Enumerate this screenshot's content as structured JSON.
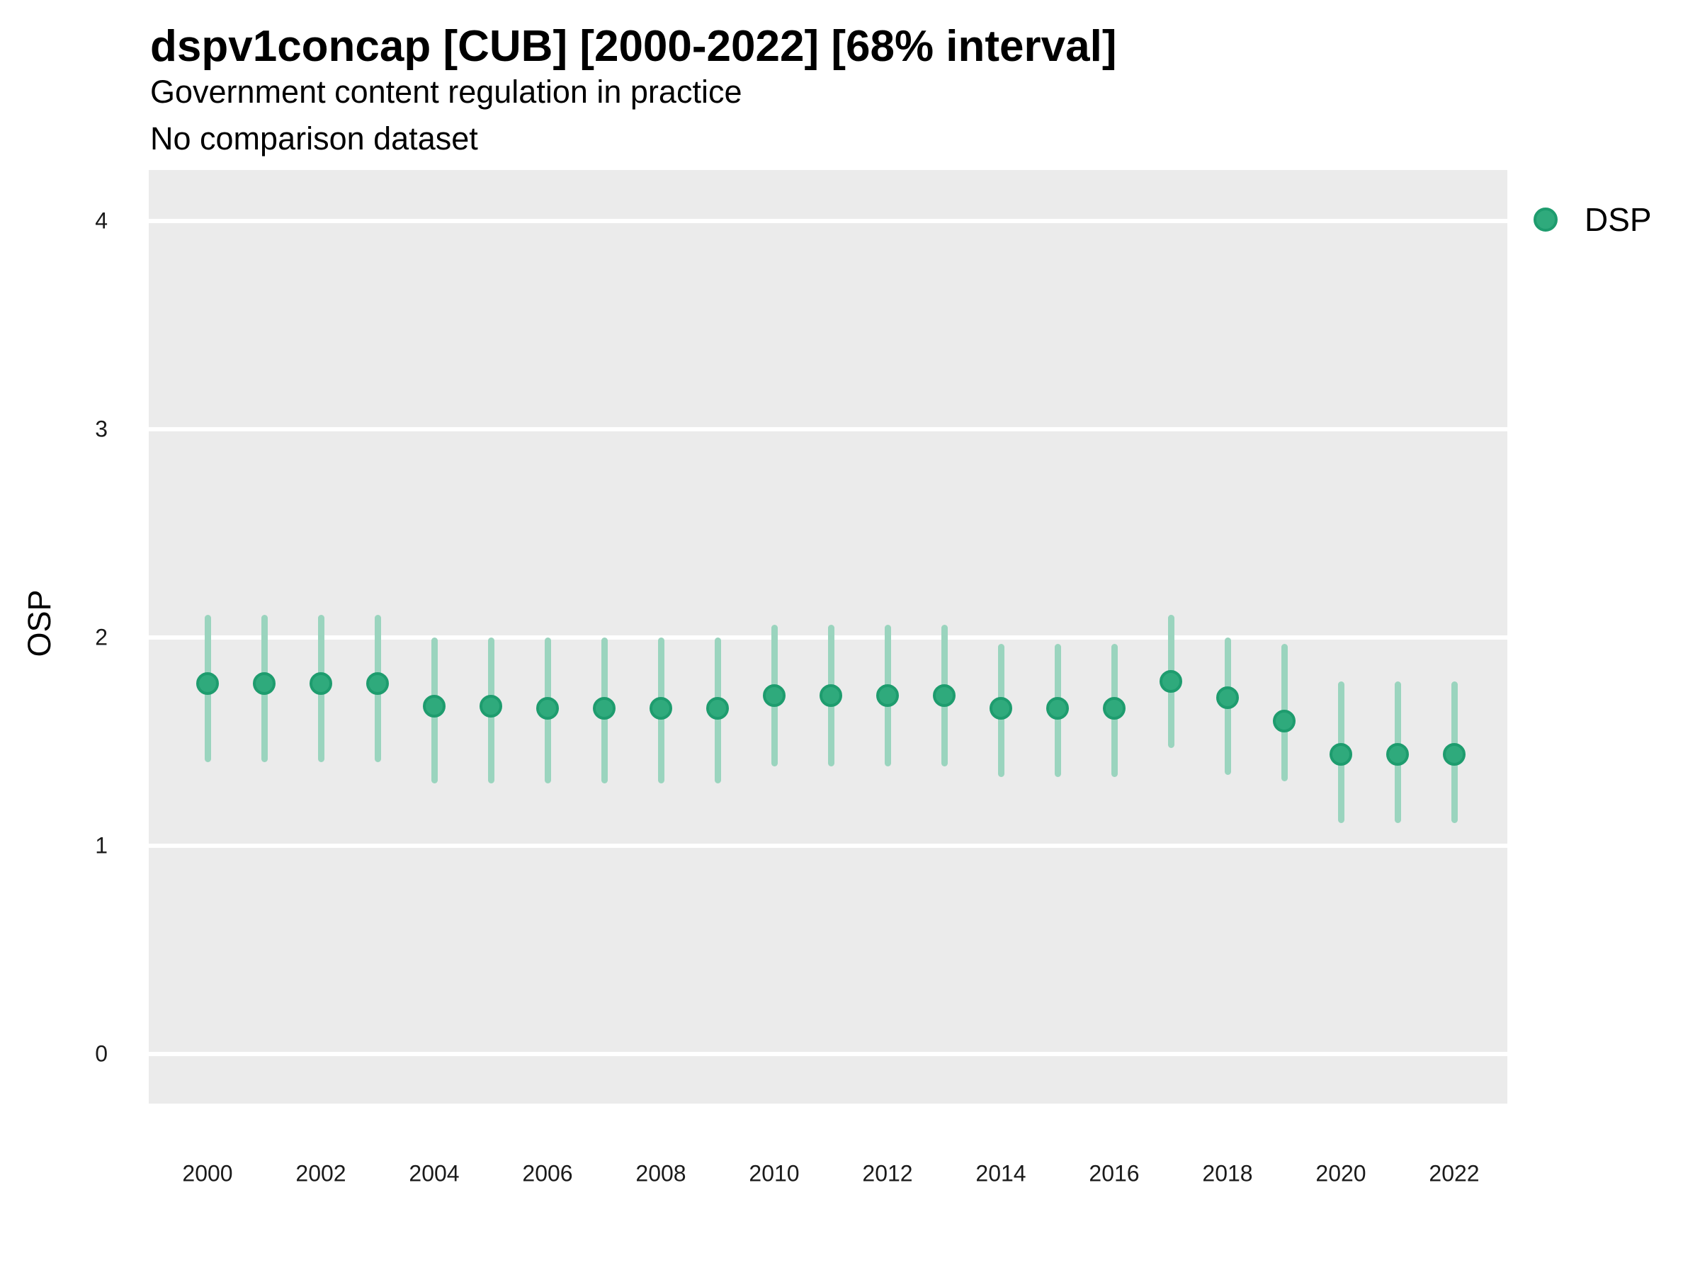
{
  "header": {
    "title": "dspv1concap [CUB] [2000-2022] [68% interval]",
    "subtitle": "Government content regulation in practice",
    "note": "No comparison dataset"
  },
  "legend": {
    "items": [
      {
        "label": "DSP",
        "color": "#2faa7c",
        "ring_color": "#1e9c6e"
      }
    ]
  },
  "colors": {
    "panel_bg": "#ebebeb",
    "gridline": "#ffffff",
    "interval_bar": "#9ad4be",
    "point_fill": "#2faa7c",
    "point_stroke": "#1e9c6e",
    "tick_text": "#1a1a1a",
    "title_text": "#000000"
  },
  "chart_data": {
    "type": "scatter",
    "title": "dspv1concap [CUB] [2000-2022] [68% interval]",
    "subtitle": "Government content regulation in practice",
    "note": "No comparison dataset",
    "xlabel": "",
    "ylabel": "OSP",
    "ylim": [
      0,
      4
    ],
    "yticks": [
      0,
      1,
      2,
      3,
      4
    ],
    "xticks": [
      2000,
      2002,
      2004,
      2006,
      2008,
      2010,
      2012,
      2014,
      2016,
      2018,
      2020,
      2022
    ],
    "grid": "major-horizontal-white-on-gray",
    "legend_position": "top-right-outside",
    "interval": "68%",
    "series": [
      {
        "name": "DSP",
        "x": [
          2000,
          2001,
          2002,
          2003,
          2004,
          2005,
          2006,
          2007,
          2008,
          2009,
          2010,
          2011,
          2012,
          2013,
          2014,
          2015,
          2016,
          2017,
          2018,
          2019,
          2020,
          2021,
          2022
        ],
        "y": [
          1.78,
          1.78,
          1.78,
          1.78,
          1.67,
          1.67,
          1.66,
          1.66,
          1.66,
          1.66,
          1.72,
          1.72,
          1.72,
          1.72,
          1.66,
          1.66,
          1.66,
          1.79,
          1.71,
          1.6,
          1.44,
          1.44,
          1.44
        ],
        "lo": [
          1.4,
          1.4,
          1.4,
          1.4,
          1.3,
          1.3,
          1.3,
          1.3,
          1.3,
          1.3,
          1.38,
          1.38,
          1.38,
          1.38,
          1.33,
          1.33,
          1.33,
          1.47,
          1.34,
          1.31,
          1.11,
          1.11,
          1.11
        ],
        "hi": [
          2.11,
          2.11,
          2.11,
          2.11,
          2.0,
          2.0,
          2.0,
          2.0,
          2.0,
          2.0,
          2.06,
          2.06,
          2.06,
          2.06,
          1.97,
          1.97,
          1.97,
          2.11,
          2.0,
          1.97,
          1.79,
          1.79,
          1.79
        ]
      }
    ]
  }
}
